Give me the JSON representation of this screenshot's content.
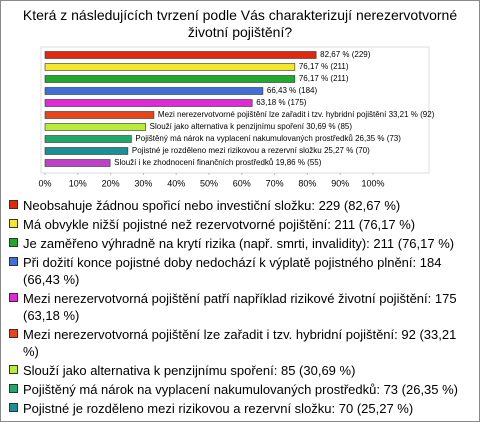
{
  "chart_data": {
    "type": "bar",
    "orientation": "horizontal",
    "title": "Která z následujících tvrzení podle Vás charakterizují nerezervotvorné životní pojištění?",
    "values": [
      82.67,
      76.17,
      76.17,
      66.43,
      63.18,
      33.21,
      30.69,
      26.35,
      25.27,
      19.86
    ],
    "value_labels": [
      "82,67 % (229)",
      "76,17 % (211)",
      "76,17 % (211)",
      "66,43 % (184)",
      "63,18 % (175)",
      "33,21 % (92)",
      "30,69 % (85)",
      "26,35 % (73)",
      "25,27 % (70)",
      "19,86 % (55)"
    ],
    "bar_texts": [
      null,
      null,
      null,
      null,
      null,
      "Mezi nerezervotvorné pojištění lze zařadit i tzv. hybridní pojištění",
      "Slouží jako alternativa k penzijnímu spoření",
      "Pojištěný má nárok na vyplacení nakumulovaných prostředků",
      "Pojistné je rozděleno mezi rizikovou a rezervní složku",
      "Slouží i ke zhodnocení finančních prostředků"
    ],
    "categories": [
      "Neobsahuje žádnou spořicí nebo investiční složku: 229 (82,67 %)",
      "Má obvykle nižší pojistné než rezervotvorné pojištění: 211 (76,17 %)",
      "Je zaměřeno výhradně na krytí rizika (např. smrti, invalidity): 211 (76,17 %)",
      "Při dožití konce pojistné doby nedochází k výplatě pojistného plnění: 184 (66,43 %)",
      "Mezi nerezervotvorná pojištění patří například rizikové životní pojištění: 175 (63,18 %)",
      "Mezi nerezervotvorná pojištění lze zařadit i tzv. hybridní pojištění: 92 (33,21 %)",
      "Slouží jako alternativa k penzijnímu spoření: 85 (30,69 %)",
      "Pojištěný má nárok na vyplacení nakumulovaných prostředků: 73 (26,35 %)",
      "Pojistné je rozděleno mezi rizikovou a rezervní složku: 70 (25,27 %)",
      "Slouží i ke zhodnocení finančních prostředků: 55 (19,86 %)"
    ],
    "colors": [
      "#e0280f",
      "#f4e628",
      "#22a82c",
      "#3f6fd8",
      "#e02ad8",
      "#e8441a",
      "#b8ec3a",
      "#1fa86a",
      "#1a8f95",
      "#c040c8"
    ],
    "xlim": [
      0,
      100
    ],
    "xticks": [
      {
        "value": 0,
        "label": "0%"
      },
      {
        "value": 10,
        "label": "10%"
      },
      {
        "value": 20,
        "label": "20%"
      },
      {
        "value": 30,
        "label": "30%"
      },
      {
        "value": 40,
        "label": "40%"
      },
      {
        "value": 50,
        "label": "50%"
      },
      {
        "value": 60,
        "label": "60%"
      },
      {
        "value": 70,
        "label": "70%"
      },
      {
        "value": 80,
        "label": "80%"
      },
      {
        "value": 90,
        "label": "90%"
      },
      {
        "value": 100,
        "label": "100%"
      }
    ]
  }
}
